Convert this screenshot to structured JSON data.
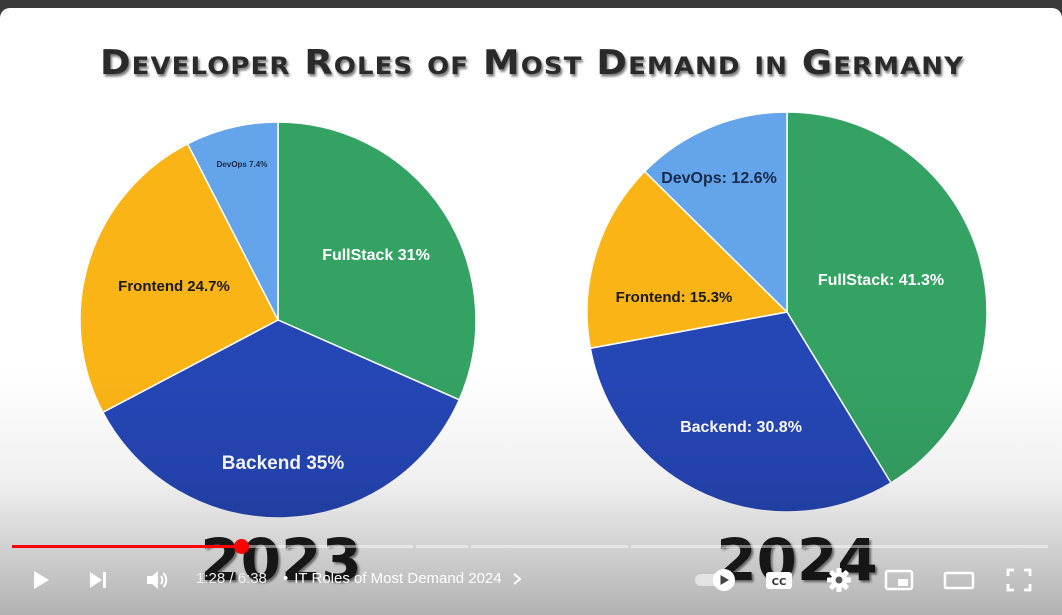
{
  "title": "Developer Roles of Most Demand in Germany",
  "chart_data": [
    {
      "type": "pie",
      "title": "2023",
      "slices": [
        {
          "label": "FullStack 31%",
          "value": 31,
          "color": "#34a263"
        },
        {
          "label": "Backend 35%",
          "value": 35,
          "color": "#2546b5"
        },
        {
          "label": "Frontend 24.7%",
          "value": 24.7,
          "color": "#fbb415"
        },
        {
          "label": "DevOps 7.4%",
          "value": 7.4,
          "color": "#63a4ea"
        }
      ]
    },
    {
      "type": "pie",
      "title": "2024",
      "slices": [
        {
          "label": "FullStack: 41.3%",
          "value": 41.3,
          "color": "#34a263"
        },
        {
          "label": "Backend: 30.8%",
          "value": 30.8,
          "color": "#2546b5"
        },
        {
          "label": "Frontend: 15.3%",
          "value": 15.3,
          "color": "#fbb415"
        },
        {
          "label": "DevOps: 12.6%",
          "value": 12.6,
          "color": "#63a4ea"
        }
      ]
    }
  ],
  "player": {
    "time": "1:28 / 6:38",
    "separator": "•",
    "chapter": "IT Roles of Most Demand 2024",
    "progress_fraction": 0.221,
    "icons": {
      "play": "play-icon",
      "next": "next-icon",
      "volume": "volume-icon",
      "autoplay": "autoplay-toggle-icon",
      "captions": "cc-icon",
      "settings": "gear-icon",
      "miniplayer": "miniplayer-icon",
      "theater": "theater-icon",
      "fullscreen": "fullscreen-icon"
    },
    "captions_label": "CC",
    "accent": "#ff0000"
  }
}
